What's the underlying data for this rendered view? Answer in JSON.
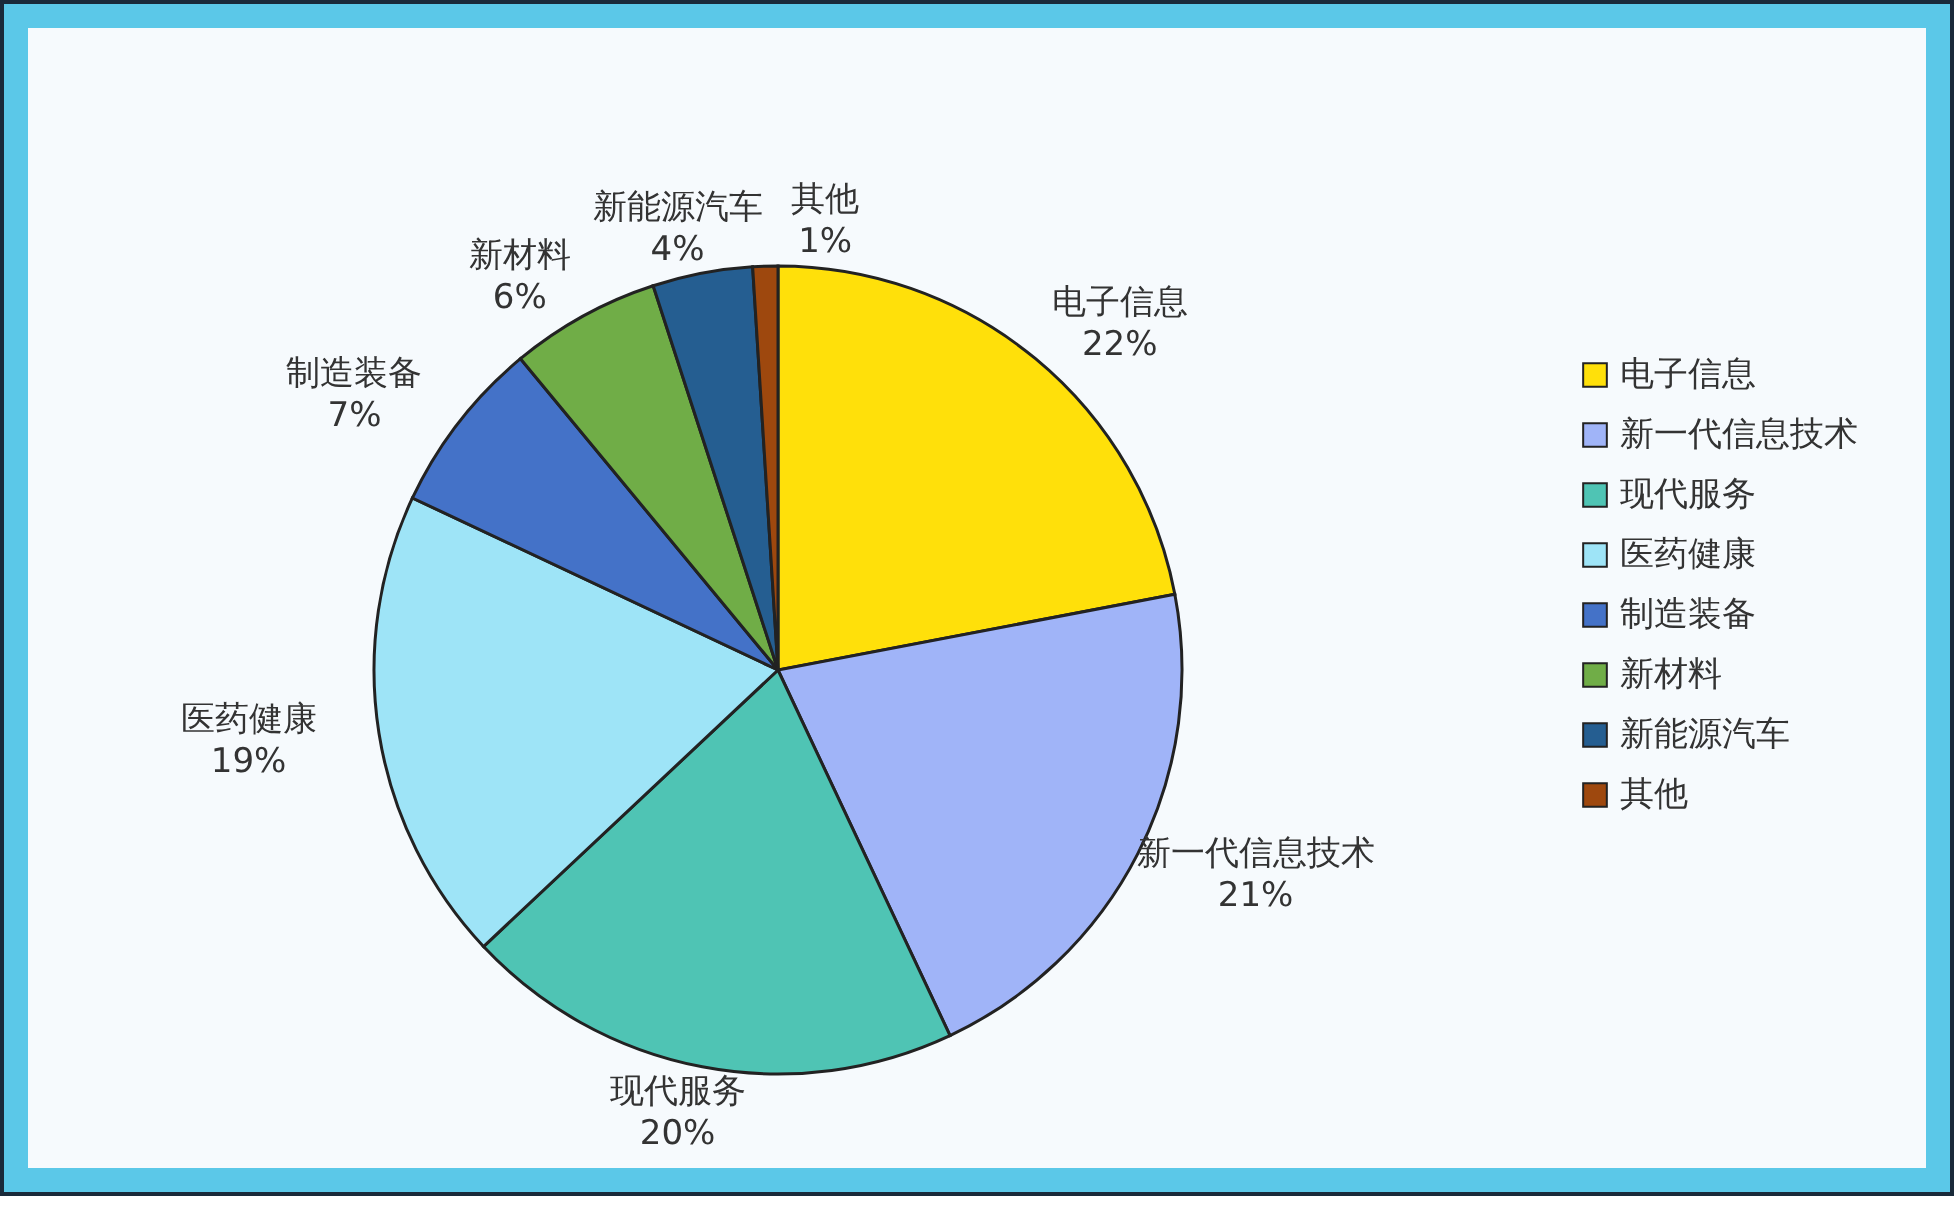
{
  "chart_data": {
    "type": "pie",
    "categories": [
      "电子信息",
      "新一代信息技术",
      "现代服务",
      "医药健康",
      "制造装备",
      "新材料",
      "新能源汽车",
      "其他"
    ],
    "values": [
      22,
      21,
      20,
      19,
      7,
      6,
      4,
      1
    ],
    "value_labels": [
      "22%",
      "21%",
      "20%",
      "19%",
      "7%",
      "6%",
      "4%",
      "1%"
    ],
    "colors": [
      "#ffe00a",
      "#a0b4f8",
      "#4fc4b4",
      "#9ee4f7",
      "#4472c8",
      "#70ad47",
      "#255e91",
      "#9e480e"
    ],
    "legend": "right"
  }
}
